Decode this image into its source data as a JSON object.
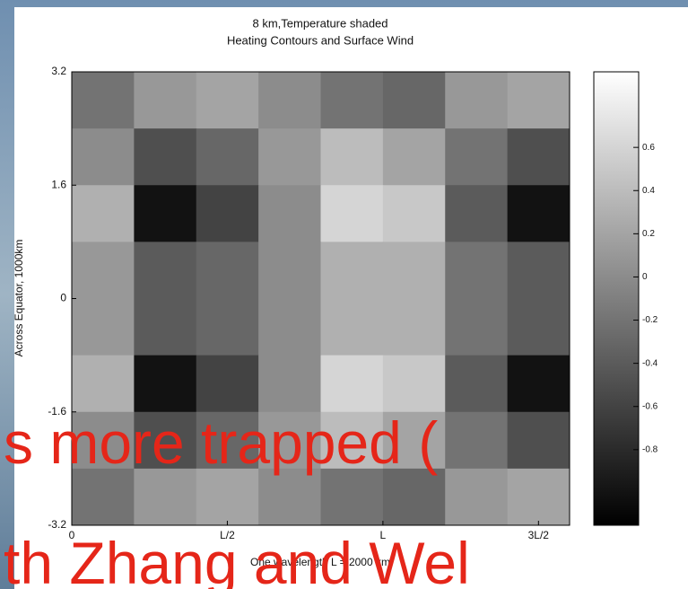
{
  "chart_data": {
    "type": "heatmap",
    "title": "8 km,Temperature shaded",
    "subtitle": "Heating Contours and Surface Wind",
    "xlabel": "One wavelength L = 2000 km",
    "ylabel": "Across Equator, 1000km",
    "x": [
      200,
      600,
      1000,
      1400,
      1800,
      2200,
      2600,
      3000
    ],
    "y": [
      2.8,
      2.0,
      1.2,
      0.4,
      -0.4,
      -1.2,
      -2.0,
      -2.8
    ],
    "z": [
      [
        -0.2,
        0.1,
        0.2,
        0.0,
        -0.2,
        -0.3,
        0.1,
        0.2
      ],
      [
        0.0,
        -0.5,
        -0.3,
        0.1,
        0.4,
        0.2,
        -0.2,
        -0.5
      ],
      [
        0.3,
        -1.0,
        -0.6,
        0.0,
        0.6,
        0.5,
        -0.4,
        -1.0
      ],
      [
        0.1,
        -0.4,
        -0.3,
        0.0,
        0.3,
        0.3,
        -0.2,
        -0.4
      ],
      [
        0.1,
        -0.4,
        -0.3,
        0.0,
        0.3,
        0.3,
        -0.2,
        -0.4
      ],
      [
        0.3,
        -1.0,
        -0.6,
        0.0,
        0.6,
        0.5,
        -0.4,
        -1.0
      ],
      [
        0.0,
        -0.5,
        -0.3,
        0.1,
        0.4,
        0.2,
        -0.2,
        -0.5
      ],
      [
        -0.2,
        0.1,
        0.2,
        0.0,
        -0.2,
        -0.3,
        0.1,
        0.2
      ]
    ],
    "colormap": "gray",
    "clim": [
      -1.15,
      0.95
    ],
    "cticks": [
      0.6,
      0.4,
      0.2,
      0,
      -0.2,
      -0.4,
      -0.6,
      -0.8
    ],
    "xlim": [
      0,
      3200
    ],
    "xticks": [
      0,
      {
        "value": 1000,
        "label": "L/2"
      },
      {
        "value": 2000,
        "label": "L"
      },
      {
        "value": 3000,
        "label": "3L/2"
      }
    ],
    "ylim": [
      -3.2,
      3.2
    ],
    "yticks": [
      3.2,
      1.6,
      0,
      -1.6,
      -3.2
    ]
  },
  "slide_text": [
    "s more trapped (",
    "th Zhang and Wel"
  ]
}
